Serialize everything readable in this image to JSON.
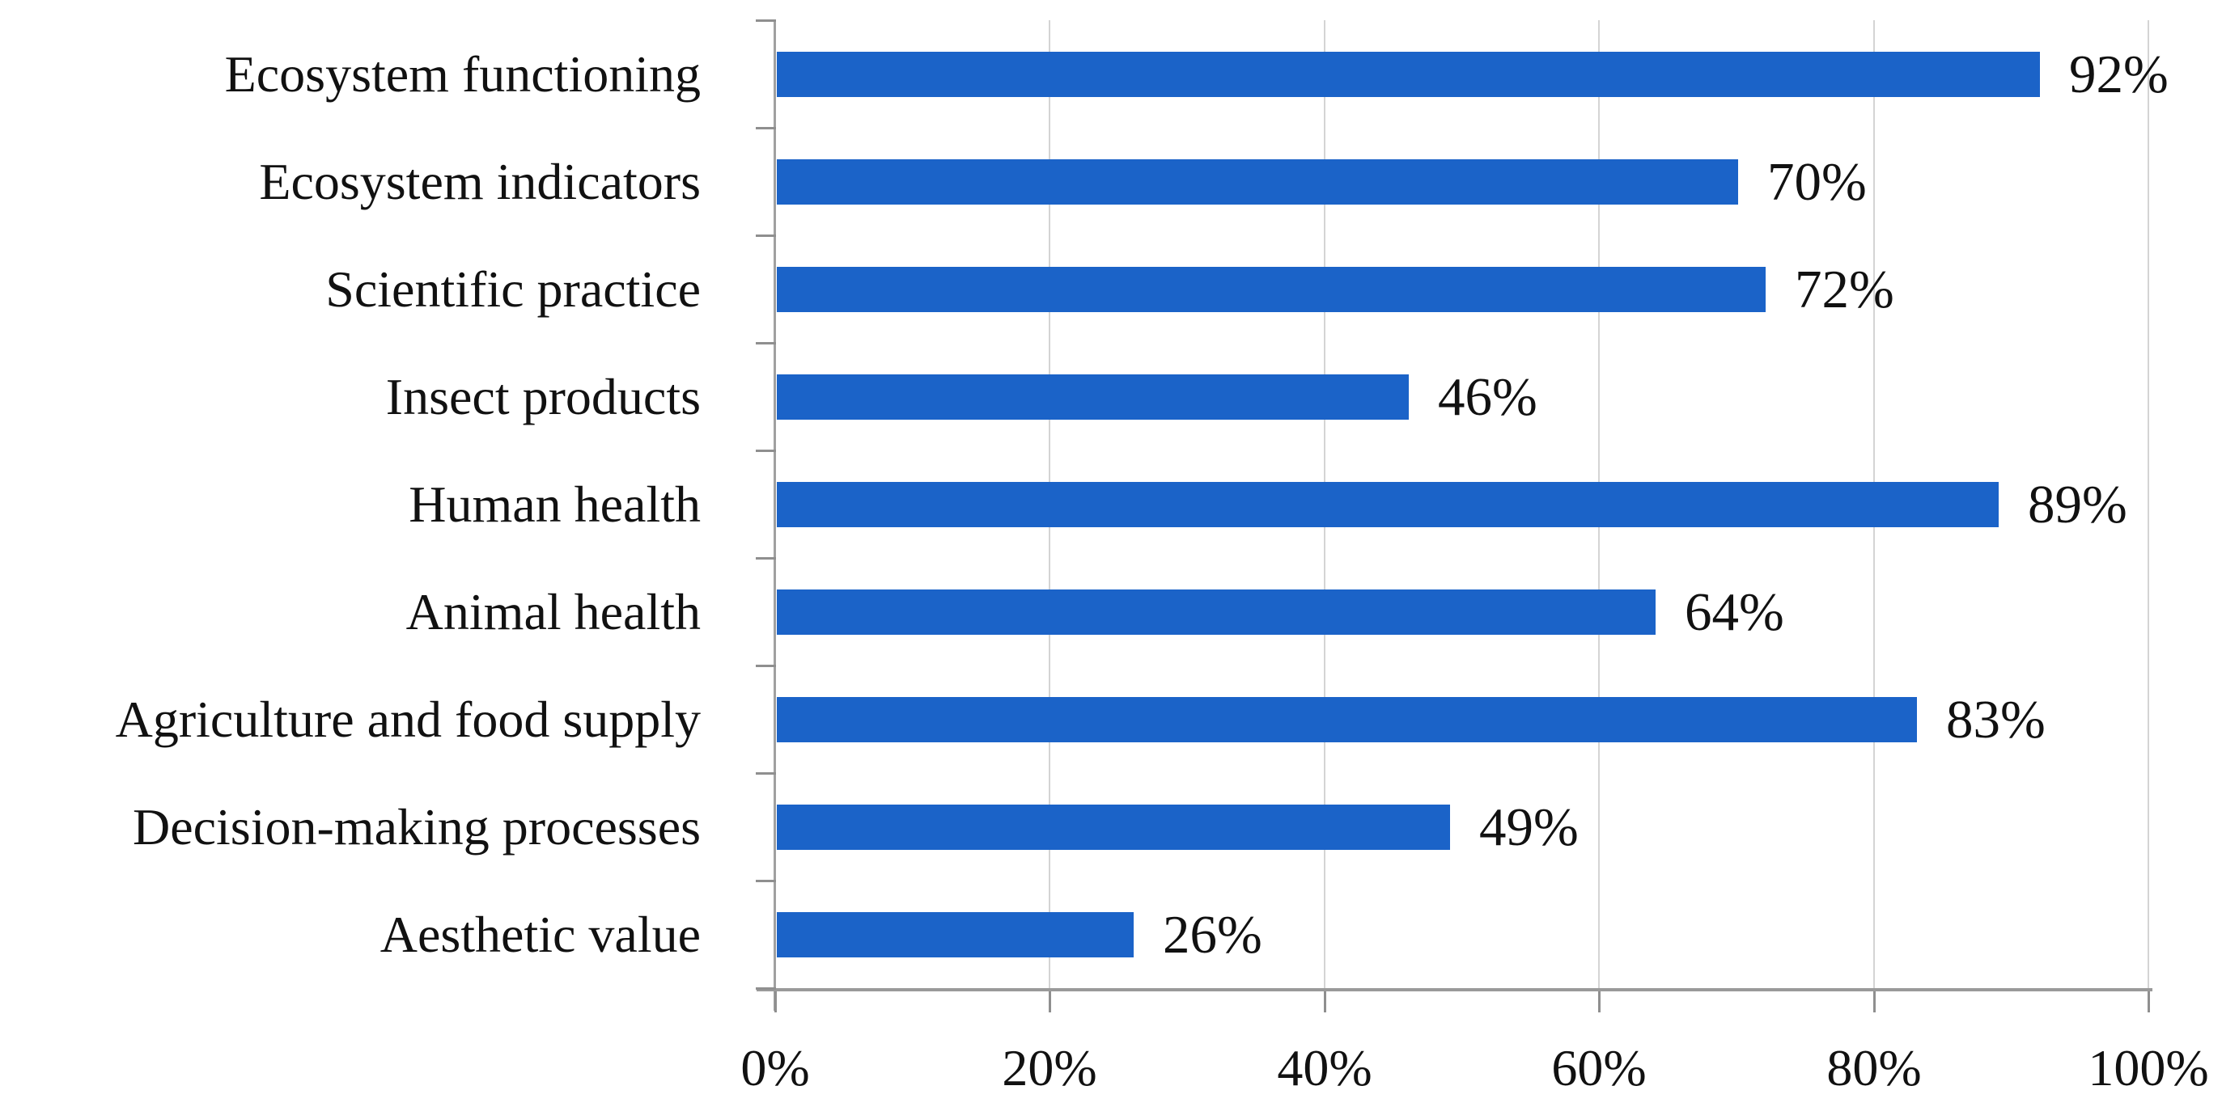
{
  "chart_data": {
    "type": "bar",
    "orientation": "horizontal",
    "title": "",
    "xlabel": "",
    "ylabel": "",
    "categories": [
      "Ecosystem functioning",
      "Ecosystem indicators",
      "Scientific practice",
      "Insect products",
      "Human health",
      "Animal health",
      "Agriculture and food supply",
      "Decision-making processes",
      "Aesthetic value"
    ],
    "values": [
      92,
      70,
      72,
      46,
      89,
      64,
      83,
      49,
      26
    ],
    "value_labels": [
      "92%",
      "70%",
      "72%",
      "46%",
      "89%",
      "64%",
      "83%",
      "49%",
      "26%"
    ],
    "xlim": [
      0,
      100
    ],
    "xticks": {
      "values": [
        0,
        20,
        40,
        60,
        80,
        100
      ],
      "labels": [
        "0%",
        "20%",
        "40%",
        "60%",
        "80%",
        "100%"
      ]
    },
    "grid": "vertical-on",
    "legend": "none",
    "colors": {
      "bar": "#1b63c8",
      "bar_highlight": "#5c90da",
      "bar_shadow": "#1459b9",
      "gridline": "#d4d4d4",
      "axis": "#9a9a9a",
      "tick": "#8f8f8f",
      "text": "#111111",
      "background": "#ffffff"
    }
  }
}
